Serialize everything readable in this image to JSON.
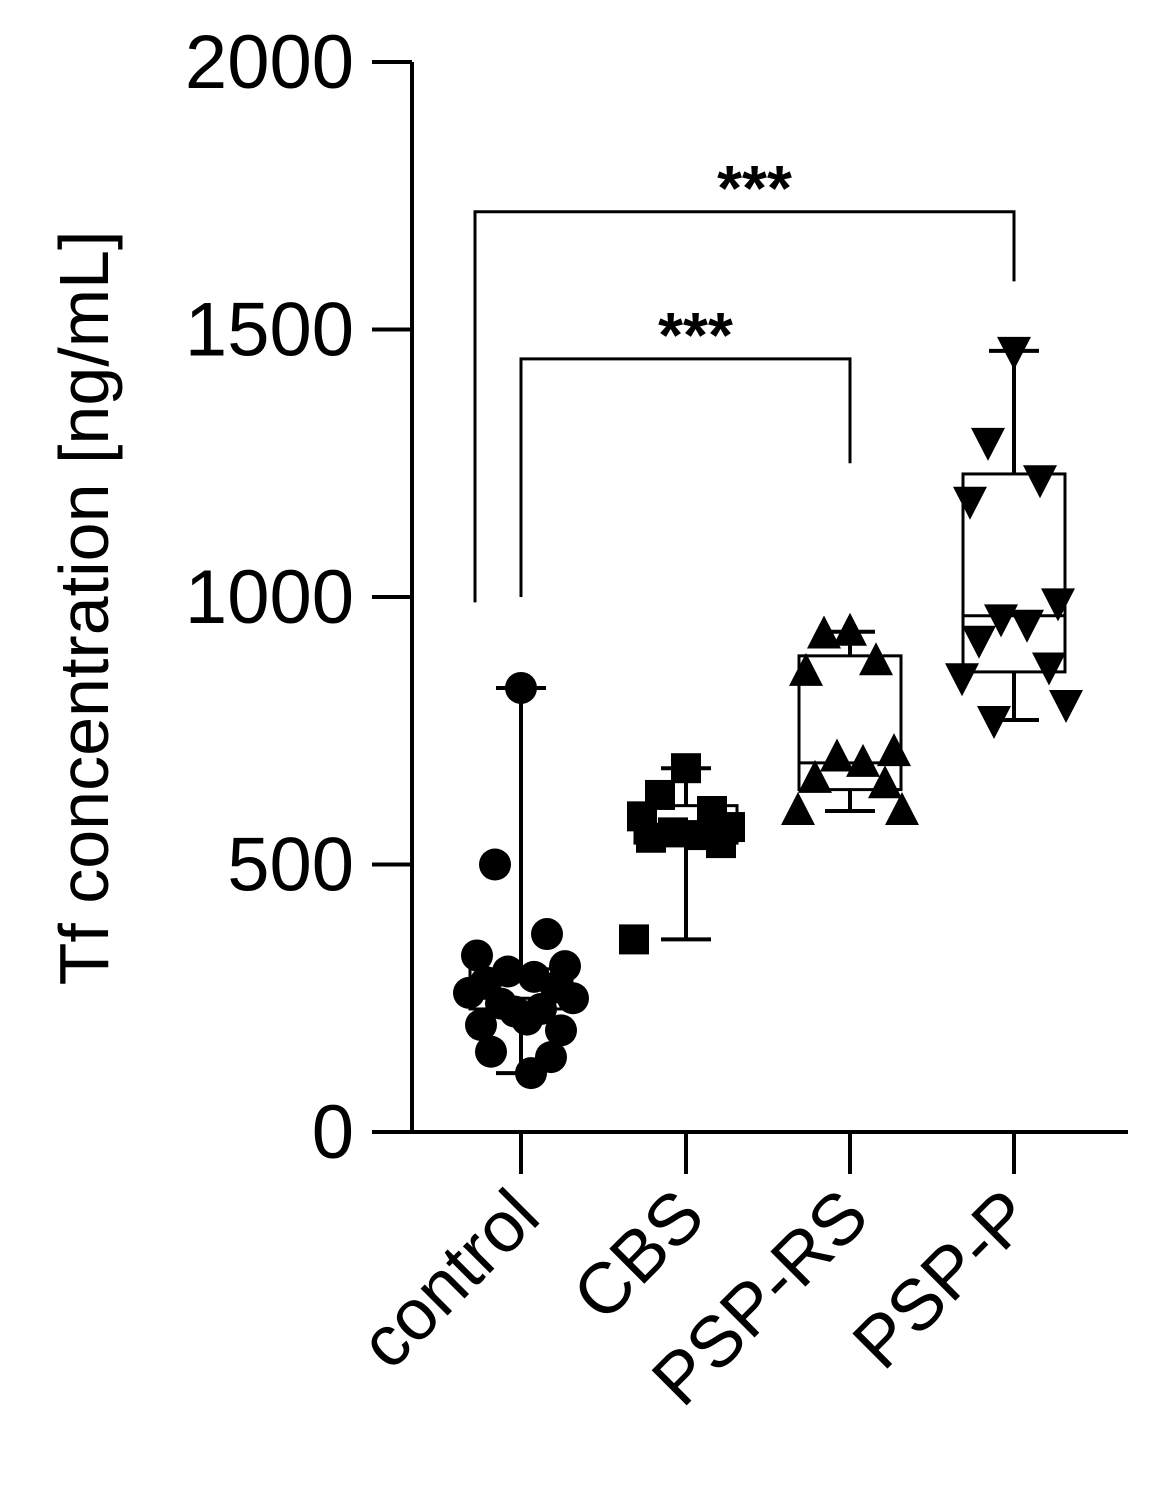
{
  "chart_data": {
    "type": "box",
    "ylabel": "Tf concentration [ng/mL]",
    "ylim": [
      0,
      2000
    ],
    "yticks": [
      0,
      500,
      1000,
      1500,
      2000
    ],
    "ytick_labels": [
      "0",
      "500",
      "1000",
      "1500",
      "2000"
    ],
    "categories": [
      "control",
      "CBS",
      "PSP-RS",
      "PSP-P"
    ],
    "marker_shapes": [
      "circle",
      "square",
      "triangle-up",
      "triangle-down"
    ],
    "groups": [
      {
        "name": "control",
        "box": {
          "min": 110,
          "q1": 230,
          "median": 250,
          "q3": 305,
          "max": 830
        },
        "points": [
          830,
          500,
          370,
          330,
          310,
          300,
          290,
          280,
          270,
          260,
          250,
          240,
          230,
          225,
          210,
          200,
          190,
          150,
          140,
          110
        ]
      },
      {
        "name": "CBS",
        "box": {
          "min": 360,
          "q1": 540,
          "median": 570,
          "q3": 610,
          "max": 680
        },
        "points": [
          680,
          630,
          600,
          590,
          570,
          560,
          555,
          550,
          540,
          360
        ]
      },
      {
        "name": "PSP-RS",
        "box": {
          "min": 600,
          "q1": 640,
          "median": 690,
          "q3": 890,
          "max": 935
        },
        "points": [
          935,
          930,
          880,
          860,
          710,
          700,
          690,
          660,
          650,
          600,
          600
        ]
      },
      {
        "name": "PSP-P",
        "box": {
          "min": 770,
          "q1": 860,
          "median": 965,
          "q3": 1230,
          "max": 1460
        },
        "points": [
          1460,
          1290,
          1220,
          1180,
          990,
          960,
          950,
          920,
          870,
          850,
          800,
          770
        ]
      }
    ],
    "significance": [
      {
        "from": "control",
        "to": "PSP-P",
        "label": "***",
        "bar_y": 1720,
        "left_end_y": 990,
        "right_end_y": 1590
      },
      {
        "from": "control",
        "to": "PSP-RS",
        "label": "***",
        "bar_y": 1445,
        "left_end_y": 1000,
        "right_end_y": 1250
      }
    ]
  }
}
